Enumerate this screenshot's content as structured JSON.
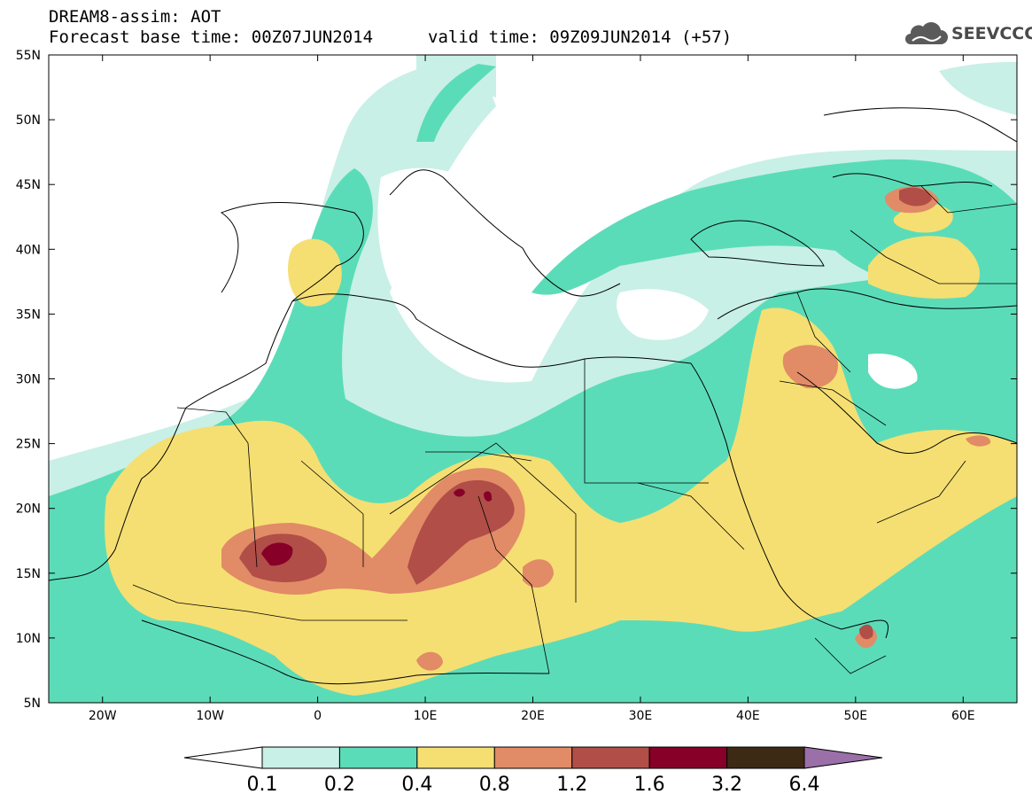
{
  "header": {
    "title_line1": "DREAM8-assim: AOT",
    "title_line2a": "Forecast base time: 00Z07JUN2014",
    "title_line2b": "valid time: 09Z09JUN2014 (+57)",
    "logo_text": "SEEVCCC",
    "logo_icon": "cloud-icon"
  },
  "map": {
    "lat_labels": [
      "55N",
      "50N",
      "45N",
      "40N",
      "35N",
      "30N",
      "25N",
      "20N",
      "15N",
      "10N",
      "5N"
    ],
    "lon_labels": [
      "20W",
      "10W",
      "0",
      "10E",
      "20E",
      "30E",
      "40E",
      "50E",
      "60E"
    ]
  },
  "colorbar": {
    "colors": [
      "#c8f0e6",
      "#5bdcb8",
      "#f5df72",
      "#e28b67",
      "#b14e48",
      "#860028",
      "#3c2a14"
    ],
    "under_color": "#ffffff",
    "over_color": "#9b6fa8",
    "labels": [
      "0.1",
      "0.2",
      "0.4",
      "0.8",
      "1.2",
      "1.6",
      "3.2",
      "6.4"
    ]
  },
  "colors": {
    "light": "#c8f0e6",
    "green": "#5bdcb8",
    "yellow": "#f5df72",
    "orange": "#e28b67",
    "brown": "#b14e48",
    "dark": "#860028"
  }
}
